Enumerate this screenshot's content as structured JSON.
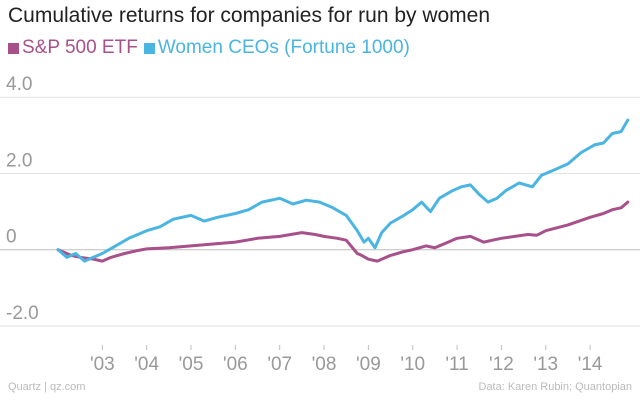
{
  "chart_data": {
    "type": "line",
    "title": "Cumulative returns for companies for run by women",
    "xlabel": "",
    "ylabel": "",
    "ylim": [
      -2.5,
      4.4
    ],
    "xlim": [
      2002.0,
      2014.9
    ],
    "yticks": [
      4.0,
      2.0,
      0,
      -2.0
    ],
    "ytick_labels": [
      "4.0",
      "2.0",
      "0",
      "-2.0"
    ],
    "xticks": [
      2003,
      2004,
      2005,
      2006,
      2007,
      2008,
      2009,
      2010,
      2011,
      2012,
      2013,
      2014
    ],
    "xtick_labels": [
      "'03",
      "'04",
      "'05",
      "'06",
      "'07",
      "'08",
      "'09",
      "'10",
      "'11",
      "'12",
      "'13",
      "'14"
    ],
    "legend_position": "top-left",
    "grid": "horizontal",
    "series": [
      {
        "name": "S&P 500 ETF",
        "color": "#a8508a",
        "x": [
          2002.0,
          2002.3,
          2002.5,
          2002.8,
          2003.0,
          2003.2,
          2003.5,
          2003.8,
          2004.0,
          2004.5,
          2005.0,
          2005.5,
          2006.0,
          2006.5,
          2007.0,
          2007.5,
          2007.8,
          2008.0,
          2008.3,
          2008.5,
          2008.75,
          2008.85,
          2009.0,
          2009.2,
          2009.5,
          2009.8,
          2010.0,
          2010.3,
          2010.5,
          2010.8,
          2011.0,
          2011.3,
          2011.6,
          2011.8,
          2012.0,
          2012.3,
          2012.6,
          2012.8,
          2013.0,
          2013.5,
          2014.0,
          2014.3,
          2014.5,
          2014.7,
          2014.85
        ],
        "values": [
          0.0,
          -0.15,
          -0.2,
          -0.25,
          -0.3,
          -0.2,
          -0.1,
          -0.02,
          0.02,
          0.05,
          0.1,
          0.15,
          0.2,
          0.3,
          0.35,
          0.45,
          0.4,
          0.35,
          0.3,
          0.25,
          -0.1,
          -0.15,
          -0.25,
          -0.3,
          -0.15,
          -0.05,
          0.0,
          0.1,
          0.05,
          0.2,
          0.3,
          0.35,
          0.2,
          0.25,
          0.3,
          0.35,
          0.4,
          0.38,
          0.5,
          0.65,
          0.85,
          0.95,
          1.05,
          1.1,
          1.25
        ]
      },
      {
        "name": "Women CEOs (Fortune 1000)",
        "color": "#4ab5e2",
        "x": [
          2002.0,
          2002.2,
          2002.4,
          2002.6,
          2002.8,
          2003.0,
          2003.3,
          2003.6,
          2004.0,
          2004.3,
          2004.6,
          2005.0,
          2005.3,
          2005.6,
          2006.0,
          2006.3,
          2006.6,
          2007.0,
          2007.3,
          2007.6,
          2007.9,
          2008.2,
          2008.5,
          2008.75,
          2008.9,
          2009.0,
          2009.15,
          2009.3,
          2009.5,
          2009.8,
          2010.0,
          2010.2,
          2010.4,
          2010.6,
          2010.9,
          2011.1,
          2011.3,
          2011.5,
          2011.7,
          2011.9,
          2012.1,
          2012.4,
          2012.7,
          2012.9,
          2013.2,
          2013.5,
          2013.8,
          2014.1,
          2014.3,
          2014.5,
          2014.7,
          2014.85
        ],
        "values": [
          0.0,
          -0.2,
          -0.1,
          -0.3,
          -0.2,
          -0.1,
          0.1,
          0.3,
          0.5,
          0.6,
          0.8,
          0.9,
          0.75,
          0.85,
          0.95,
          1.05,
          1.25,
          1.35,
          1.2,
          1.3,
          1.25,
          1.1,
          0.9,
          0.5,
          0.2,
          0.3,
          0.05,
          0.45,
          0.7,
          0.9,
          1.05,
          1.25,
          1.0,
          1.35,
          1.55,
          1.65,
          1.7,
          1.45,
          1.25,
          1.35,
          1.55,
          1.75,
          1.65,
          1.95,
          2.1,
          2.25,
          2.55,
          2.75,
          2.8,
          3.05,
          3.1,
          3.4
        ]
      }
    ]
  },
  "footer": {
    "source_left": "Quartz | qz.com",
    "source_right": "Data: Karen Rubin; Quantopian"
  }
}
